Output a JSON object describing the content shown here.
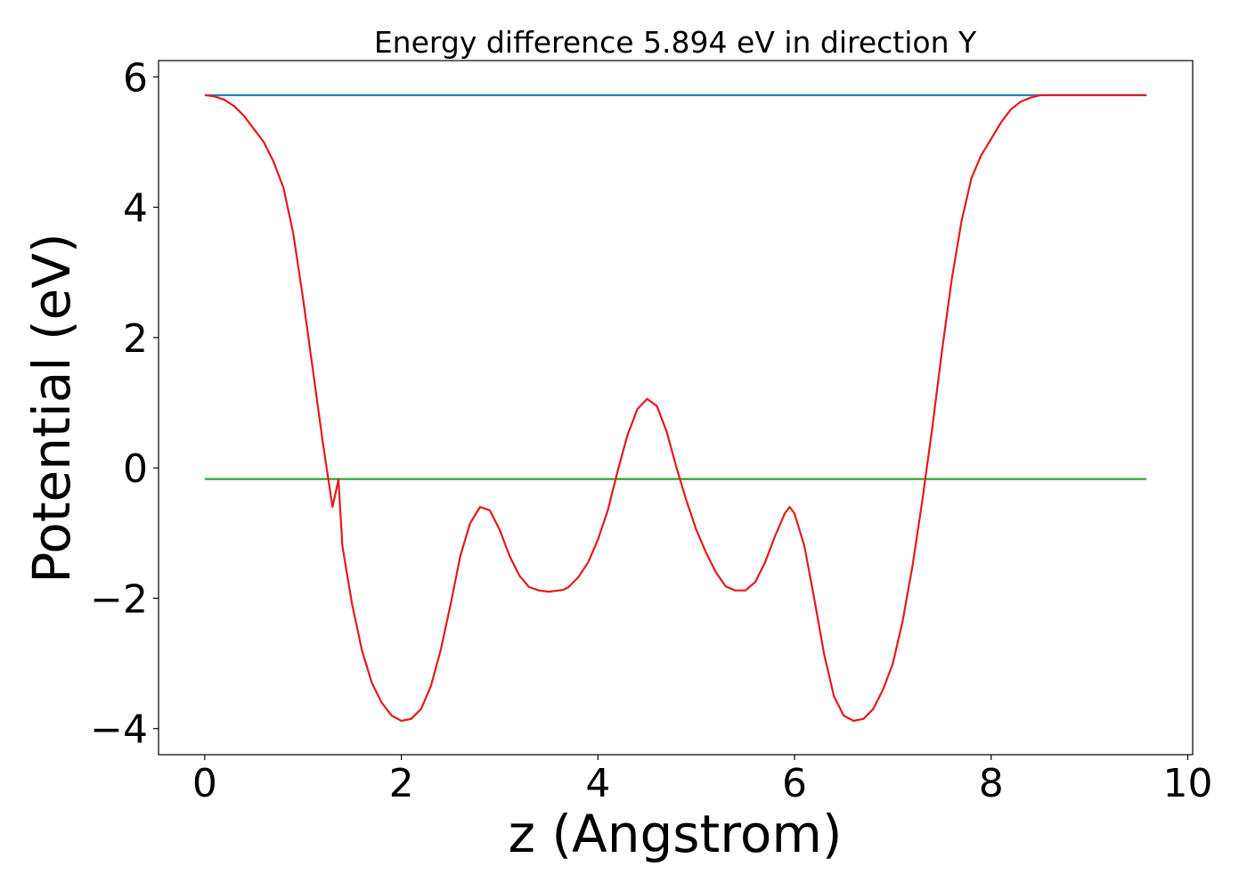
{
  "chart_data": {
    "type": "line",
    "title": "Energy difference 5.894 eV in direction Y",
    "xlabel": "z (Angstrom)",
    "ylabel": "Potential (eV)",
    "xlim": [
      -0.47,
      10.05
    ],
    "ylim": [
      -4.4,
      6.25
    ],
    "xticks": [
      0,
      2,
      4,
      6,
      8,
      10
    ],
    "xtick_labels": [
      "0",
      "2",
      "4",
      "6",
      "8",
      "10"
    ],
    "yticks": [
      -4,
      -2,
      0,
      2,
      4,
      6
    ],
    "ytick_labels": [
      "−4",
      "−2",
      "0",
      "2",
      "4",
      "6"
    ],
    "grid": false,
    "legend": "none",
    "series": [
      {
        "color": "#e31a1c",
        "x": [
          0.0,
          0.1,
          0.2,
          0.3,
          0.4,
          0.5,
          0.6,
          0.7,
          0.8,
          0.9,
          1.0,
          1.1,
          1.2,
          1.3,
          1.36,
          1.4,
          1.5,
          1.6,
          1.7,
          1.8,
          1.9,
          2.0,
          2.1,
          2.2,
          2.3,
          2.4,
          2.5,
          2.6,
          2.7,
          2.8,
          2.9,
          3.0,
          3.1,
          3.2,
          3.3,
          3.4,
          3.5,
          3.6,
          3.65,
          3.7,
          3.8,
          3.9,
          4.0,
          4.1,
          4.2,
          4.3,
          4.4,
          4.5,
          4.6,
          4.7,
          4.8,
          4.9,
          5.0,
          5.1,
          5.2,
          5.3,
          5.4,
          5.5,
          5.6,
          5.7,
          5.8,
          5.9,
          5.95,
          6.0,
          6.1,
          6.2,
          6.3,
          6.4,
          6.5,
          6.6,
          6.7,
          6.8,
          6.9,
          7.0,
          7.1,
          7.2,
          7.3,
          7.4,
          7.5,
          7.6,
          7.7,
          7.8,
          7.9,
          8.0,
          8.1,
          8.2,
          8.3,
          8.4,
          8.5,
          8.6,
          8.7,
          8.8,
          8.9,
          9.0,
          9.1,
          9.2,
          9.3,
          9.4,
          9.5,
          9.58
        ],
        "y": [
          5.72,
          5.7,
          5.65,
          5.55,
          5.4,
          5.2,
          5.0,
          4.7,
          4.3,
          3.6,
          2.6,
          1.5,
          0.4,
          -0.6,
          -0.18,
          -1.2,
          -2.1,
          -2.8,
          -3.3,
          -3.6,
          -3.8,
          -3.88,
          -3.85,
          -3.7,
          -3.35,
          -2.8,
          -2.1,
          -1.35,
          -0.85,
          -0.6,
          -0.65,
          -0.95,
          -1.35,
          -1.65,
          -1.83,
          -1.88,
          -1.9,
          -1.88,
          -1.87,
          -1.83,
          -1.68,
          -1.45,
          -1.1,
          -0.65,
          -0.05,
          0.5,
          0.9,
          1.06,
          0.95,
          0.55,
          0.0,
          -0.5,
          -0.95,
          -1.3,
          -1.6,
          -1.82,
          -1.88,
          -1.88,
          -1.75,
          -1.45,
          -1.05,
          -0.7,
          -0.6,
          -0.7,
          -1.2,
          -2.0,
          -2.85,
          -3.5,
          -3.8,
          -3.88,
          -3.85,
          -3.7,
          -3.4,
          -3.0,
          -2.35,
          -1.5,
          -0.5,
          0.6,
          1.8,
          2.9,
          3.8,
          4.45,
          4.8,
          5.05,
          5.3,
          5.5,
          5.62,
          5.68,
          5.72,
          5.72,
          5.72,
          5.72,
          5.72,
          5.72,
          5.72,
          5.72,
          5.72,
          5.72,
          5.72,
          5.72
        ]
      },
      {
        "color": "#1f78b4",
        "x": [
          0.0,
          9.58
        ],
        "y": [
          5.72,
          5.72
        ]
      },
      {
        "color": "#33a02c",
        "x": [
          0.0,
          9.58
        ],
        "y": [
          -0.17,
          -0.17
        ]
      }
    ]
  }
}
